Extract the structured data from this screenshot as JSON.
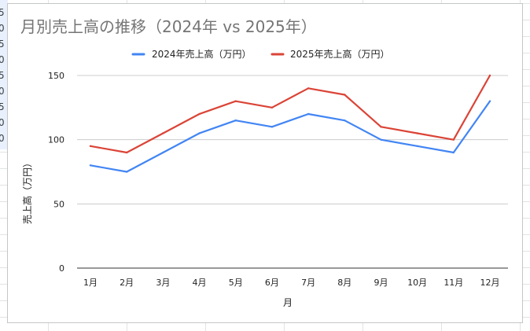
{
  "sheet": {
    "left_column_digits": [
      "5",
      "0",
      "5",
      "0",
      "5",
      "0",
      "5",
      "0",
      "0"
    ]
  },
  "chart_data": {
    "type": "line",
    "title": "月別売上高の推移（2024年 vs 2025年）",
    "categories": [
      "1月",
      "2月",
      "3月",
      "4月",
      "5月",
      "6月",
      "7月",
      "8月",
      "9月",
      "10月",
      "11月",
      "12月"
    ],
    "series": [
      {
        "name": "2024年売上高（万円）",
        "color": "#4285f4",
        "values": [
          80,
          75,
          90,
          105,
          115,
          110,
          120,
          115,
          100,
          95,
          90,
          130
        ]
      },
      {
        "name": "2025年売上高（万円）",
        "color": "#db4437",
        "values": [
          95,
          90,
          105,
          120,
          130,
          125,
          140,
          135,
          110,
          105,
          100,
          150
        ]
      }
    ],
    "xlabel": "月",
    "ylabel": "売上高（万円）",
    "ylim": [
      0,
      150
    ],
    "yticks": [
      "0",
      "50",
      "100",
      "150"
    ],
    "grid": true,
    "legend_position": "top"
  }
}
